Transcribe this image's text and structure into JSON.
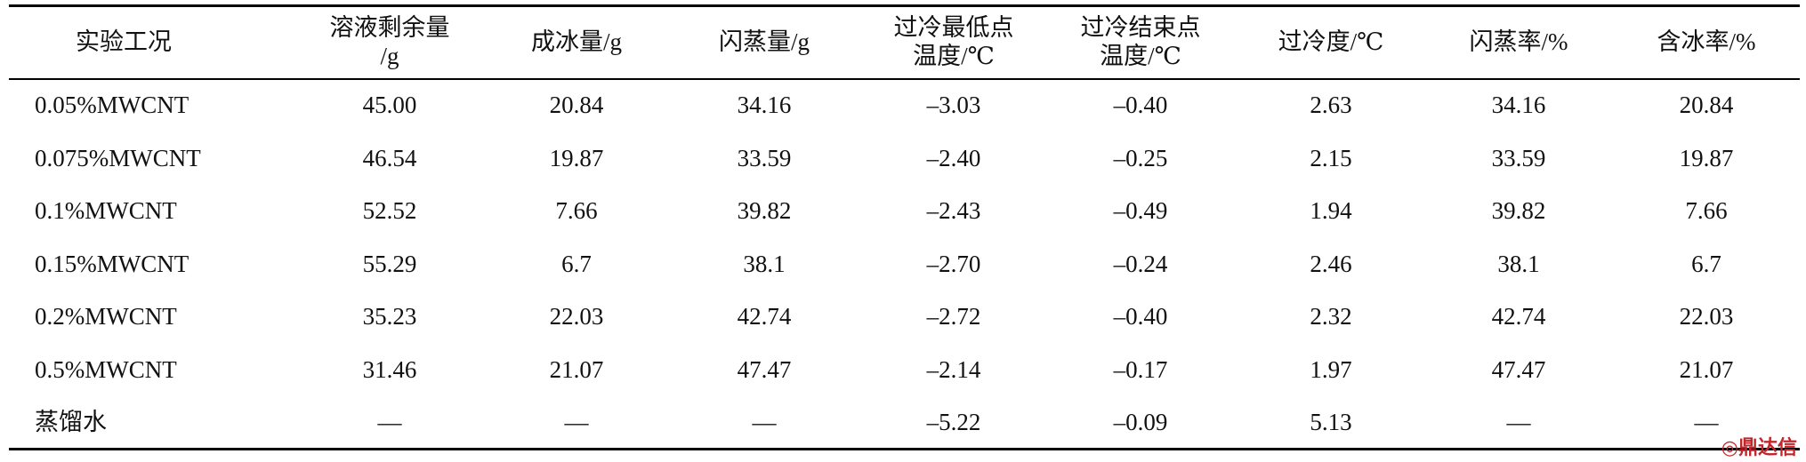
{
  "table": {
    "header": [
      [
        "实验工况"
      ],
      [
        "溶液剩余量",
        "/g"
      ],
      [
        "成冰量/g"
      ],
      [
        "闪蒸量/g"
      ],
      [
        "过冷最低点",
        "温度/℃"
      ],
      [
        "过冷结束点",
        "温度/℃"
      ],
      [
        "过冷度/℃"
      ],
      [
        "闪蒸率/%"
      ],
      [
        "含冰率/%"
      ]
    ],
    "rows": [
      [
        "0.05%MWCNT",
        "45.00",
        "20.84",
        "34.16",
        "–3.03",
        "–0.40",
        "2.63",
        "34.16",
        "20.84"
      ],
      [
        "0.075%MWCNT",
        "46.54",
        "19.87",
        "33.59",
        "–2.40",
        "–0.25",
        "2.15",
        "33.59",
        "19.87"
      ],
      [
        "0.1%MWCNT",
        "52.52",
        "7.66",
        "39.82",
        "–2.43",
        "–0.49",
        "1.94",
        "39.82",
        "7.66"
      ],
      [
        "0.15%MWCNT",
        "55.29",
        "6.7",
        "38.1",
        "–2.70",
        "–0.24",
        "2.46",
        "38.1",
        "6.7"
      ],
      [
        "0.2%MWCNT",
        "35.23",
        "22.03",
        "42.74",
        "–2.72",
        "–0.40",
        "2.32",
        "42.74",
        "22.03"
      ],
      [
        "0.5%MWCNT",
        "31.46",
        "21.07",
        "47.47",
        "–2.14",
        "–0.17",
        "1.97",
        "47.47",
        "21.07"
      ],
      [
        "蒸馏水",
        "—",
        "—",
        "—",
        "–5.22",
        "–0.09",
        "5.13",
        "—",
        "—"
      ]
    ]
  },
  "watermark": "鼎达信"
}
